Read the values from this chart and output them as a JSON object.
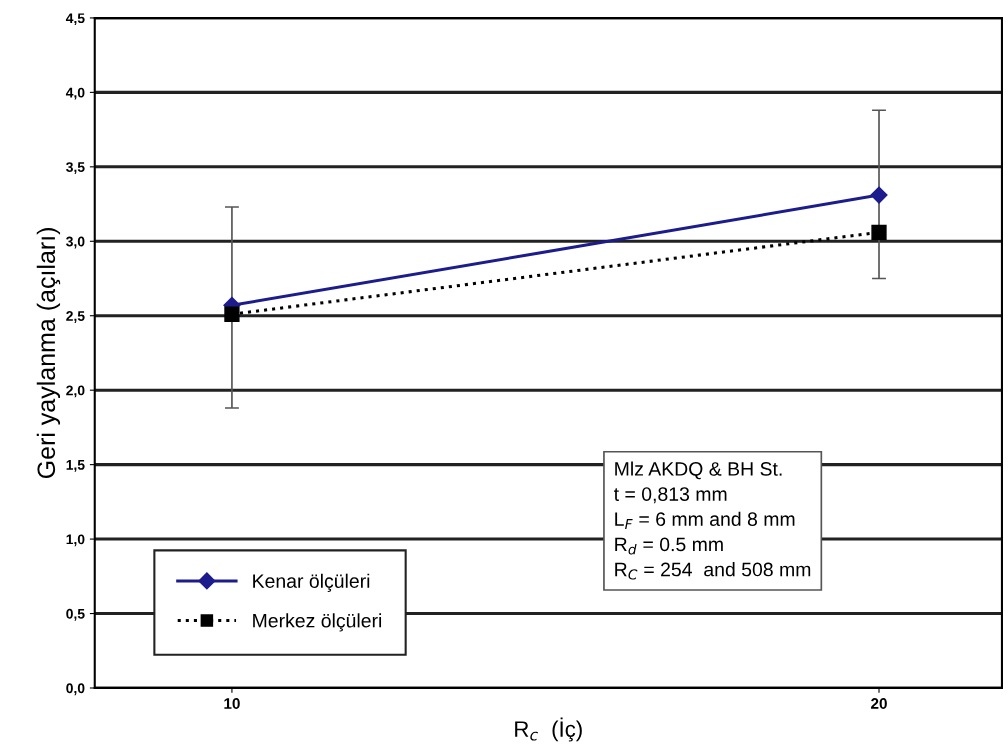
{
  "chart_data": {
    "type": "line",
    "xlabel": "R$_{c}$  (İç)",
    "ylabel": "Geri yaylanma (açıları)",
    "categories": [
      "10",
      "20"
    ],
    "series": [
      {
        "name": "Kenar ölçüleri",
        "color": "#1c1c8c",
        "values": [
          2.57,
          3.31
        ],
        "errors": [
          [
            1.88,
            3.23
          ],
          [
            2.75,
            3.88
          ]
        ],
        "marker": "diamond",
        "line_style": "solid"
      },
      {
        "name": "Merkez ölçüleri",
        "color": "#000000",
        "values": [
          2.51,
          3.06
        ],
        "marker": "square",
        "line_style": "dotted"
      }
    ],
    "ylim": [
      0,
      4.5
    ],
    "yticks": [
      {
        "value": 0,
        "label": "0,0"
      },
      {
        "value": 0.5,
        "label": "0,5"
      },
      {
        "value": 1,
        "label": "1,0"
      },
      {
        "value": 1.5,
        "label": "1,5"
      },
      {
        "value": 2,
        "label": "2,0"
      },
      {
        "value": 2.5,
        "label": "2,5"
      },
      {
        "value": 3,
        "label": "3,0"
      },
      {
        "value": 3.5,
        "label": "3,5"
      },
      {
        "value": 4,
        "label": "4,0"
      },
      {
        "value": 4.5,
        "label": "4,5"
      }
    ],
    "grid": "y",
    "legend": "bottom left",
    "annotations": [
      "Mlz AKDQ & BH St.",
      "t = 0,813 mm",
      "L$_{F}$ = 6 mm and 8 mm",
      "R$_{d}$ = 0.5 mm",
      "R$_{C}$ = 254  and 508 mm"
    ]
  }
}
